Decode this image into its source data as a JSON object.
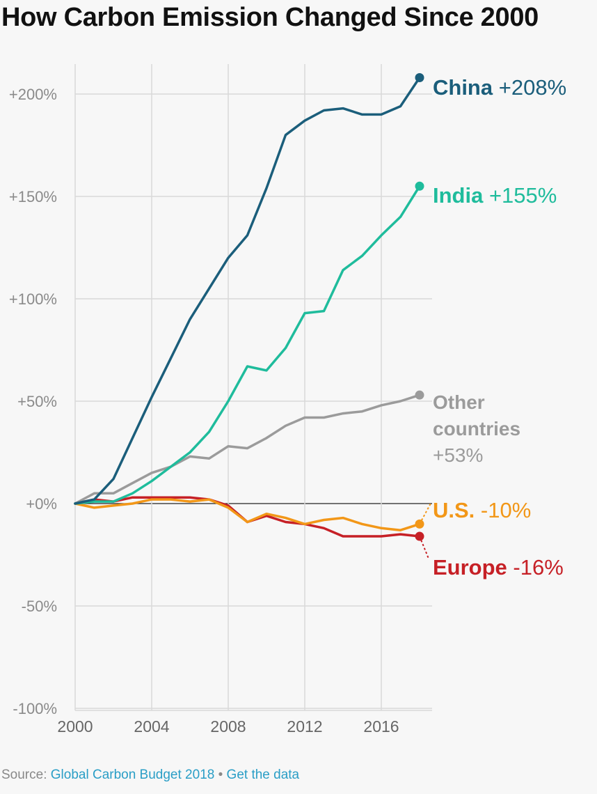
{
  "title": "How Carbon Emission Changed Since 2000",
  "footer": {
    "source_label": "Source: ",
    "source_link": "Global Carbon Budget 2018",
    "separator": " • ",
    "data_link": "Get the data"
  },
  "chart_data": {
    "type": "line",
    "title": "How Carbon Emission Changed Since 2000",
    "xlabel": "",
    "ylabel": "",
    "x": [
      2000,
      2001,
      2002,
      2003,
      2004,
      2005,
      2006,
      2007,
      2008,
      2009,
      2010,
      2011,
      2012,
      2013,
      2014,
      2015,
      2016,
      2017,
      2018
    ],
    "xlim": [
      2000,
      2018
    ],
    "ylim": [
      -100,
      215
    ],
    "x_ticks": [
      2000,
      2004,
      2008,
      2012,
      2016
    ],
    "x_tick_labels": [
      "2000",
      "2004",
      "2008",
      "2012",
      "2016"
    ],
    "y_ticks": [
      200,
      150,
      100,
      50,
      0,
      -50,
      -100
    ],
    "y_tick_labels": [
      "+200%",
      "+150%",
      "+100%",
      "+50%",
      "+0%",
      "-50%",
      "-100%"
    ],
    "grid": true,
    "series": [
      {
        "name": "China",
        "value_label": "+208%",
        "color": "#1b5e7b",
        "values": [
          0,
          2,
          12,
          32,
          52,
          71,
          90,
          105,
          120,
          131,
          154,
          180,
          187,
          192,
          193,
          190,
          190,
          194,
          208
        ]
      },
      {
        "name": "India",
        "value_label": "+155%",
        "color": "#1fbc9c",
        "values": [
          0,
          1,
          1,
          5,
          11,
          18,
          25,
          35,
          50,
          67,
          65,
          76,
          93,
          94,
          114,
          121,
          131,
          140,
          155
        ]
      },
      {
        "name": "Other countries",
        "name_lines": [
          "Other",
          "countries"
        ],
        "value_label": "+53%",
        "color": "#9b9b9b",
        "values": [
          0,
          5,
          5,
          10,
          15,
          18,
          23,
          22,
          28,
          27,
          32,
          38,
          42,
          42,
          44,
          45,
          48,
          50,
          53
        ]
      },
      {
        "name": "U.S.",
        "value_label": "-10%",
        "color": "#f29718",
        "values": [
          0,
          -2,
          -1,
          0,
          2,
          2,
          1,
          2,
          -2,
          -9,
          -5,
          -7,
          -10,
          -8,
          -7,
          -10,
          -12,
          -13,
          -10
        ]
      },
      {
        "name": "Europe",
        "value_label": "-16%",
        "color": "#c62026",
        "values": [
          0,
          2,
          1,
          3,
          3,
          3,
          3,
          2,
          -1,
          -9,
          -6,
          -9,
          -10,
          -12,
          -16,
          -16,
          -16,
          -15,
          -16
        ]
      }
    ]
  }
}
